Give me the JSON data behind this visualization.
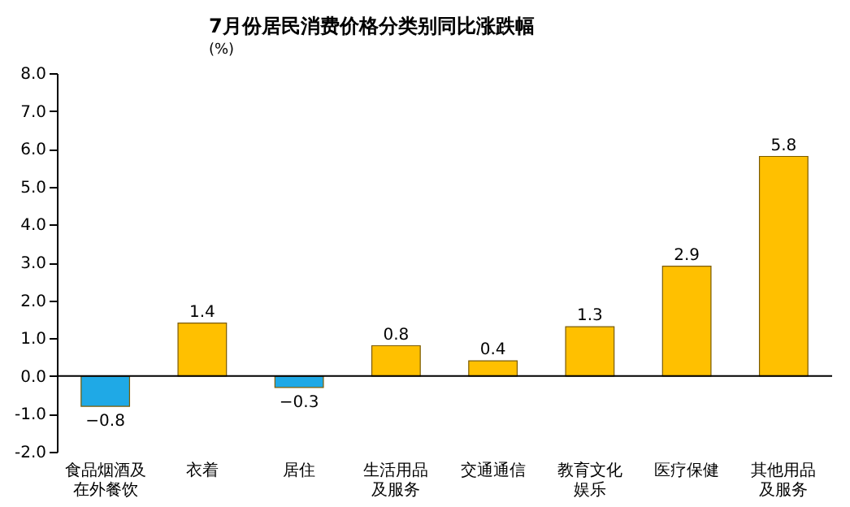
{
  "chart_data": {
    "type": "bar",
    "title": "7月份居民消费价格分类别同比涨跌幅",
    "ylabel": "(%)",
    "categories": [
      "食品烟酒及在外餐饮",
      "衣着",
      "居住",
      "生活用品及服务",
      "交通通信",
      "教育文化娱乐",
      "医疗保健",
      "其他用品及服务"
    ],
    "values": [
      -0.8,
      1.4,
      -0.3,
      0.8,
      0.4,
      1.3,
      2.9,
      5.8
    ],
    "colors": [
      "#1fa9e6",
      "#ffc000",
      "#1fa9e6",
      "#ffc000",
      "#ffc000",
      "#ffc000",
      "#ffc000",
      "#ffc000"
    ],
    "ylim": [
      -2,
      8
    ],
    "yticks": [
      {
        "value": -2,
        "label": "-2.0"
      },
      {
        "value": -1,
        "label": "-1.0"
      },
      {
        "value": 0,
        "label": "0.0"
      },
      {
        "value": 1,
        "label": "1.0"
      },
      {
        "value": 2,
        "label": "2.0"
      },
      {
        "value": 3,
        "label": "3.0"
      },
      {
        "value": 4,
        "label": "4.0"
      },
      {
        "value": 5,
        "label": "5.0"
      },
      {
        "value": 6,
        "label": "6.0"
      },
      {
        "value": 7,
        "label": "7.0"
      },
      {
        "value": 8,
        "label": "8.0"
      }
    ],
    "ref_lines": [
      {
        "axis": "y",
        "value": 0,
        "color": "#000000"
      }
    ],
    "data_labels": true,
    "grid": false
  }
}
